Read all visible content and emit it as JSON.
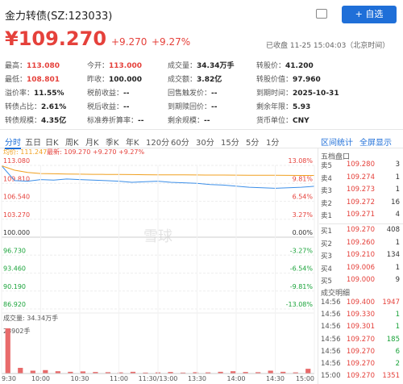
{
  "header": {
    "title": "金力转债(SZ:123033)",
    "button": "+ 自选"
  },
  "quote": {
    "price": "¥109.270",
    "change": "+9.270",
    "pct": "+9.27%",
    "status": "已收盘 11-25 15:04:03（北京时间）"
  },
  "stats": [
    [
      {
        "label": "最高：",
        "value": "113.080",
        "color": "#e5413b"
      },
      {
        "label": "今开：",
        "value": "113.000",
        "color": "#e5413b"
      },
      {
        "label": "成交量：",
        "value": "34.34万手"
      },
      {
        "label": "转股价：",
        "value": "41.200"
      }
    ],
    [
      {
        "label": "最低：",
        "value": "108.801",
        "color": "#e5413b"
      },
      {
        "label": "昨收：",
        "value": "100.000"
      },
      {
        "label": "成交额：",
        "value": "3.82亿"
      },
      {
        "label": "转股价值：",
        "value": "97.960"
      }
    ],
    [
      {
        "label": "溢价率：",
        "value": "11.55%"
      },
      {
        "label": "税前收益：",
        "value": "--"
      },
      {
        "label": "回售触发价：",
        "value": "--"
      },
      {
        "label": "到期时间：",
        "value": "2025-10-31"
      }
    ],
    [
      {
        "label": "转债占比：",
        "value": "2.61%"
      },
      {
        "label": "税后收益：",
        "value": "--"
      },
      {
        "label": "到期赎回价：",
        "value": "--"
      },
      {
        "label": "剩余年限：",
        "value": "5.93"
      }
    ],
    [
      {
        "label": "转债规模：",
        "value": "4.35亿"
      },
      {
        "label": "标准券折算率：",
        "value": "--"
      },
      {
        "label": "剩余规模：",
        "value": "--"
      },
      {
        "label": "货币单位：",
        "value": "CNY"
      }
    ]
  ],
  "tabs": [
    "分时",
    "五日",
    "日K",
    "周K",
    "月K",
    "季K",
    "年K",
    "120分",
    "60分",
    "30分",
    "15分",
    "5分",
    "1分"
  ],
  "tools": [
    "区间统计",
    "全屏显示"
  ],
  "chart_data": {
    "type": "line",
    "legend": [
      "均价: 111.247",
      "最新: 109.270 +9.270 +9.27%"
    ],
    "watermark": "雪球",
    "xticks": [
      "9:30",
      "10:00",
      "10:30",
      "11:00",
      "11:30/13:00",
      "13:30",
      "14:00",
      "14:30",
      "15:00"
    ],
    "ylim": [
      86.92,
      113.08
    ],
    "yticks": [
      {
        "value": 113.08,
        "label": "113.080"
      },
      {
        "value": 109.81,
        "label": "109.810"
      },
      {
        "value": 106.54,
        "label": "106.540"
      },
      {
        "value": 103.27,
        "label": "103.270"
      },
      {
        "value": 100,
        "label": "100.000"
      },
      {
        "value": 96.73,
        "label": "96.730"
      },
      {
        "value": 93.46,
        "label": "93.460"
      },
      {
        "value": 90.19,
        "label": "90.190"
      },
      {
        "value": 86.92,
        "label": "86.920"
      }
    ],
    "y2lim": [
      -13.08,
      13.08
    ],
    "y2ticks": [
      {
        "value": 13.08,
        "label": "13.08%"
      },
      {
        "value": 9.81,
        "label": "9.81%"
      },
      {
        "value": 6.54,
        "label": "6.54%"
      },
      {
        "value": 3.27,
        "label": "3.27%"
      },
      {
        "value": 0,
        "label": "0.00%"
      },
      {
        "value": -3.27,
        "label": "-3.27%"
      },
      {
        "value": -6.54,
        "label": "-6.54%"
      },
      {
        "value": -9.81,
        "label": "-9.81%"
      },
      {
        "value": -13.08,
        "label": "-13.08%"
      }
    ],
    "baseline": 100,
    "series": [
      {
        "color": "#3b8ee8",
        "values": [
          113.0,
          110.3,
          110.2,
          110.5,
          110.4,
          110.6,
          110.5,
          110.4,
          110.3,
          110.2,
          110.0,
          110.1,
          110.2,
          110.0,
          109.9,
          109.8,
          109.6,
          109.5,
          109.3,
          109.1,
          109.0,
          108.9,
          109.0,
          109.1,
          109.27
        ]
      },
      {
        "color": "#f0a020",
        "values": [
          113.0,
          112.2,
          111.8,
          111.6,
          111.55,
          111.5,
          111.48,
          111.45,
          111.43,
          111.42,
          111.4,
          111.38,
          111.36,
          111.35,
          111.34,
          111.33,
          111.32,
          111.31,
          111.3,
          111.29,
          111.28,
          111.27,
          111.26,
          111.25,
          111.247
        ]
      }
    ],
    "volume": {
      "label": "成交量: 34.34万手",
      "top_label": "23902手",
      "ylim": [
        0,
        23902
      ],
      "color": "#e86a6a",
      "values": [
        23902,
        3000,
        1500,
        1800,
        1200,
        900,
        1100,
        800,
        700,
        600,
        900,
        500,
        600,
        800,
        500,
        700,
        600,
        900,
        1200,
        800,
        700,
        1500,
        900,
        600,
        2500
      ]
    }
  },
  "book": {
    "title": "五档盘口",
    "rows": [
      [
        "卖5",
        "109.280",
        "3"
      ],
      [
        "卖4",
        "109.274",
        "1"
      ],
      [
        "卖3",
        "109.273",
        "1"
      ],
      [
        "卖2",
        "109.272",
        "16"
      ],
      [
        "卖1",
        "109.271",
        "4"
      ],
      [
        "买1",
        "109.270",
        "408"
      ],
      [
        "买2",
        "109.260",
        "1"
      ],
      [
        "买3",
        "109.210",
        "134"
      ],
      [
        "买4",
        "109.006",
        "1"
      ],
      [
        "买5",
        "109.000",
        "9"
      ]
    ]
  },
  "trades": {
    "title": "成交明细",
    "colors": [
      "#e5413b",
      "#1aa33a",
      "#1aa33a",
      "#1aa33a",
      "#1aa33a",
      "#1aa33a",
      "#e5413b"
    ],
    "rows": [
      [
        "14:56",
        "109.400",
        "1947"
      ],
      [
        "14:56",
        "109.330",
        "1"
      ],
      [
        "14:56",
        "109.301",
        "1"
      ],
      [
        "14:56",
        "109.270",
        "185"
      ],
      [
        "14:56",
        "109.270",
        "6"
      ],
      [
        "14:56",
        "109.270",
        "2"
      ],
      [
        "15:00",
        "109.270",
        "1351"
      ]
    ]
  }
}
